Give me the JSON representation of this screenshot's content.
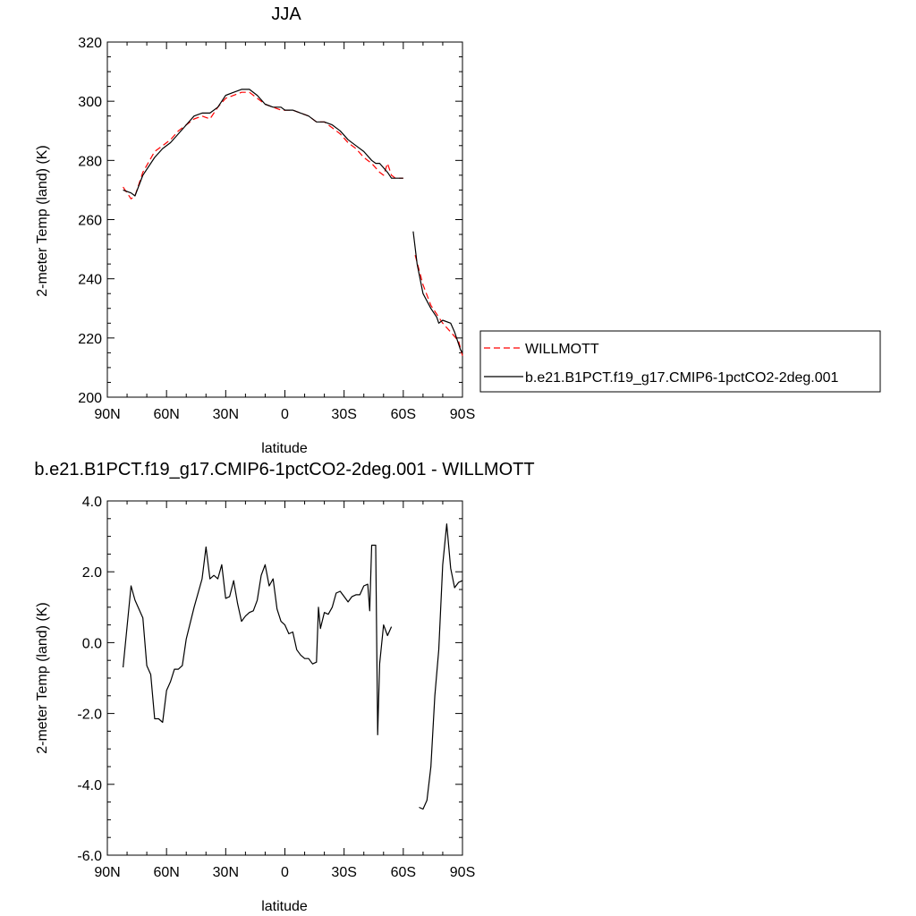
{
  "chart_data": [
    {
      "type": "line",
      "title": "JJA",
      "xlabel": "latitude",
      "ylabel": "2-meter Temp (land) (K)",
      "xlim": [
        90,
        -90
      ],
      "ylim": [
        200,
        320
      ],
      "xticks": [
        90,
        60,
        30,
        0,
        -30,
        -60,
        -90
      ],
      "xtick_labels": [
        "90N",
        "60N",
        "30N",
        "0",
        "30S",
        "60S",
        "90S"
      ],
      "yticks": [
        200,
        220,
        240,
        260,
        280,
        300,
        320
      ],
      "ytick_labels": [
        "200",
        "220",
        "240",
        "260",
        "280",
        "300",
        "320"
      ],
      "legend_position": "right",
      "series": [
        {
          "name": "WILLMOTT",
          "color": "#ff0000",
          "dash": "dashed",
          "segments": [
            [
              [
                82,
                271
              ],
              [
                78,
                267
              ],
              [
                76,
                268
              ],
              [
                72,
                276
              ],
              [
                66,
                283
              ],
              [
                62,
                285
              ],
              [
                58,
                287
              ],
              [
                54,
                290
              ],
              [
                50,
                292
              ],
              [
                46,
                294
              ],
              [
                42,
                295
              ],
              [
                38,
                294
              ],
              [
                34,
                298
              ],
              [
                30,
                301
              ],
              [
                26,
                302
              ],
              [
                22,
                303
              ],
              [
                18,
                303
              ],
              [
                14,
                301
              ],
              [
                10,
                299
              ],
              [
                6,
                298
              ],
              [
                2,
                297
              ],
              [
                0,
                297
              ],
              [
                -4,
                297
              ],
              [
                -8,
                296
              ],
              [
                -12,
                295
              ],
              [
                -16,
                293
              ],
              [
                -20,
                293
              ],
              [
                -24,
                291
              ],
              [
                -28,
                289
              ],
              [
                -32,
                286
              ],
              [
                -36,
                284
              ],
              [
                -40,
                281
              ],
              [
                -44,
                279
              ],
              [
                -48,
                276
              ],
              [
                -50,
                275
              ],
              [
                -52,
                279
              ],
              [
                -54,
                275
              ],
              [
                -56,
                274
              ],
              [
                -60,
                274
              ]
            ],
            [
              [
                -66,
                248
              ],
              [
                -70,
                238
              ],
              [
                -74,
                231
              ],
              [
                -78,
                227
              ],
              [
                -80,
                225
              ],
              [
                -84,
                222
              ],
              [
                -88,
                219
              ],
              [
                -90,
                214
              ]
            ]
          ]
        },
        {
          "name": "b.e21.B1PCT.f19_g17.CMIP6-1pctCO2-2deg.001",
          "color": "#000000",
          "dash": "solid",
          "segments": [
            [
              [
                82,
                270
              ],
              [
                78,
                269
              ],
              [
                76,
                268
              ],
              [
                72,
                275
              ],
              [
                66,
                281
              ],
              [
                62,
                284
              ],
              [
                58,
                286
              ],
              [
                54,
                289
              ],
              [
                50,
                292
              ],
              [
                46,
                295
              ],
              [
                42,
                296
              ],
              [
                38,
                296
              ],
              [
                34,
                298
              ],
              [
                30,
                302
              ],
              [
                26,
                303
              ],
              [
                22,
                304
              ],
              [
                18,
                304
              ],
              [
                14,
                302
              ],
              [
                10,
                299
              ],
              [
                6,
                298
              ],
              [
                2,
                298
              ],
              [
                0,
                297
              ],
              [
                -4,
                297
              ],
              [
                -8,
                296
              ],
              [
                -12,
                295
              ],
              [
                -16,
                293
              ],
              [
                -20,
                293
              ],
              [
                -24,
                292
              ],
              [
                -28,
                290
              ],
              [
                -32,
                287
              ],
              [
                -36,
                285
              ],
              [
                -40,
                283
              ],
              [
                -44,
                280
              ],
              [
                -46,
                279
              ],
              [
                -48,
                279
              ],
              [
                -52,
                276
              ],
              [
                -54,
                274
              ],
              [
                -56,
                274
              ],
              [
                -60,
                274
              ]
            ],
            [
              [
                -65,
                256
              ],
              [
                -67,
                245
              ],
              [
                -70,
                235
              ],
              [
                -74,
                230
              ],
              [
                -77,
                227
              ],
              [
                -78,
                225
              ],
              [
                -80,
                226
              ],
              [
                -84,
                225
              ],
              [
                -86,
                222
              ],
              [
                -89,
                216
              ],
              [
                -90,
                215
              ]
            ]
          ]
        }
      ]
    },
    {
      "type": "line",
      "title": "b.e21.B1PCT.f19_g17.CMIP6-1pctCO2-2deg.001 - WILLMOTT",
      "xlabel": "latitude",
      "ylabel": "2-meter Temp (land) (K)",
      "xlim": [
        90,
        -90
      ],
      "ylim": [
        -6,
        4
      ],
      "xticks": [
        90,
        60,
        30,
        0,
        -30,
        -60,
        -90
      ],
      "xtick_labels": [
        "90N",
        "60N",
        "30N",
        "0",
        "30S",
        "60S",
        "90S"
      ],
      "yticks": [
        -6,
        -4,
        -2,
        0,
        2,
        4
      ],
      "ytick_labels": [
        "-6.0",
        "-4.0",
        "-2.0",
        "0.0",
        "2.0",
        "4.0"
      ],
      "series": [
        {
          "color": "#000000",
          "dash": "solid",
          "segments": [
            [
              [
                82,
                -0.7
              ],
              [
                78,
                1.6
              ],
              [
                76,
                1.2
              ],
              [
                72,
                0.7
              ],
              [
                70,
                -0.65
              ],
              [
                68,
                -0.9
              ],
              [
                66,
                -2.15
              ],
              [
                64,
                -2.15
              ],
              [
                62,
                -2.25
              ],
              [
                60,
                -1.35
              ],
              [
                58,
                -1.1
              ],
              [
                56,
                -0.75
              ],
              [
                54,
                -0.75
              ],
              [
                52,
                -0.65
              ],
              [
                50,
                0.1
              ],
              [
                46,
                1.0
              ],
              [
                42,
                1.8
              ],
              [
                40,
                2.7
              ],
              [
                38,
                1.8
              ],
              [
                36,
                1.9
              ],
              [
                34,
                1.8
              ],
              [
                32,
                2.2
              ],
              [
                30,
                1.25
              ],
              [
                28,
                1.3
              ],
              [
                26,
                1.75
              ],
              [
                24,
                1.1
              ],
              [
                22,
                0.6
              ],
              [
                20,
                0.75
              ],
              [
                18,
                0.85
              ],
              [
                16,
                0.9
              ],
              [
                14,
                1.2
              ],
              [
                12,
                1.9
              ],
              [
                10,
                2.2
              ],
              [
                8,
                1.6
              ],
              [
                6,
                1.8
              ],
              [
                4,
                0.95
              ],
              [
                2,
                0.6
              ],
              [
                0,
                0.5
              ],
              [
                -2,
                0.25
              ],
              [
                -4,
                0.3
              ],
              [
                -6,
                -0.2
              ],
              [
                -8,
                -0.35
              ],
              [
                -10,
                -0.45
              ],
              [
                -12,
                -0.45
              ],
              [
                -14,
                -0.6
              ],
              [
                -16,
                -0.55
              ],
              [
                -17,
                1.0
              ],
              [
                -18,
                0.4
              ],
              [
                -20,
                0.85
              ],
              [
                -22,
                0.8
              ],
              [
                -24,
                1.0
              ],
              [
                -26,
                1.4
              ],
              [
                -28,
                1.45
              ],
              [
                -30,
                1.3
              ],
              [
                -32,
                1.15
              ],
              [
                -34,
                1.3
              ],
              [
                -36,
                1.35
              ],
              [
                -38,
                1.35
              ],
              [
                -40,
                1.6
              ],
              [
                -42,
                1.65
              ],
              [
                -43,
                0.9
              ],
              [
                -44,
                2.75
              ],
              [
                -46,
                2.75
              ],
              [
                -47,
                -2.6
              ],
              [
                -48,
                -0.6
              ],
              [
                -50,
                0.5
              ],
              [
                -52,
                0.2
              ],
              [
                -54,
                0.45
              ]
            ],
            [
              [
                -68,
                -4.65
              ],
              [
                -70,
                -4.7
              ],
              [
                -72,
                -4.45
              ],
              [
                -74,
                -3.5
              ],
              [
                -76,
                -1.5
              ],
              [
                -78,
                -0.2
              ],
              [
                -80,
                2.2
              ],
              [
                -82,
                3.35
              ],
              [
                -84,
                2.1
              ],
              [
                -86,
                1.55
              ],
              [
                -88,
                1.7
              ],
              [
                -90,
                1.75
              ]
            ]
          ]
        }
      ]
    }
  ]
}
